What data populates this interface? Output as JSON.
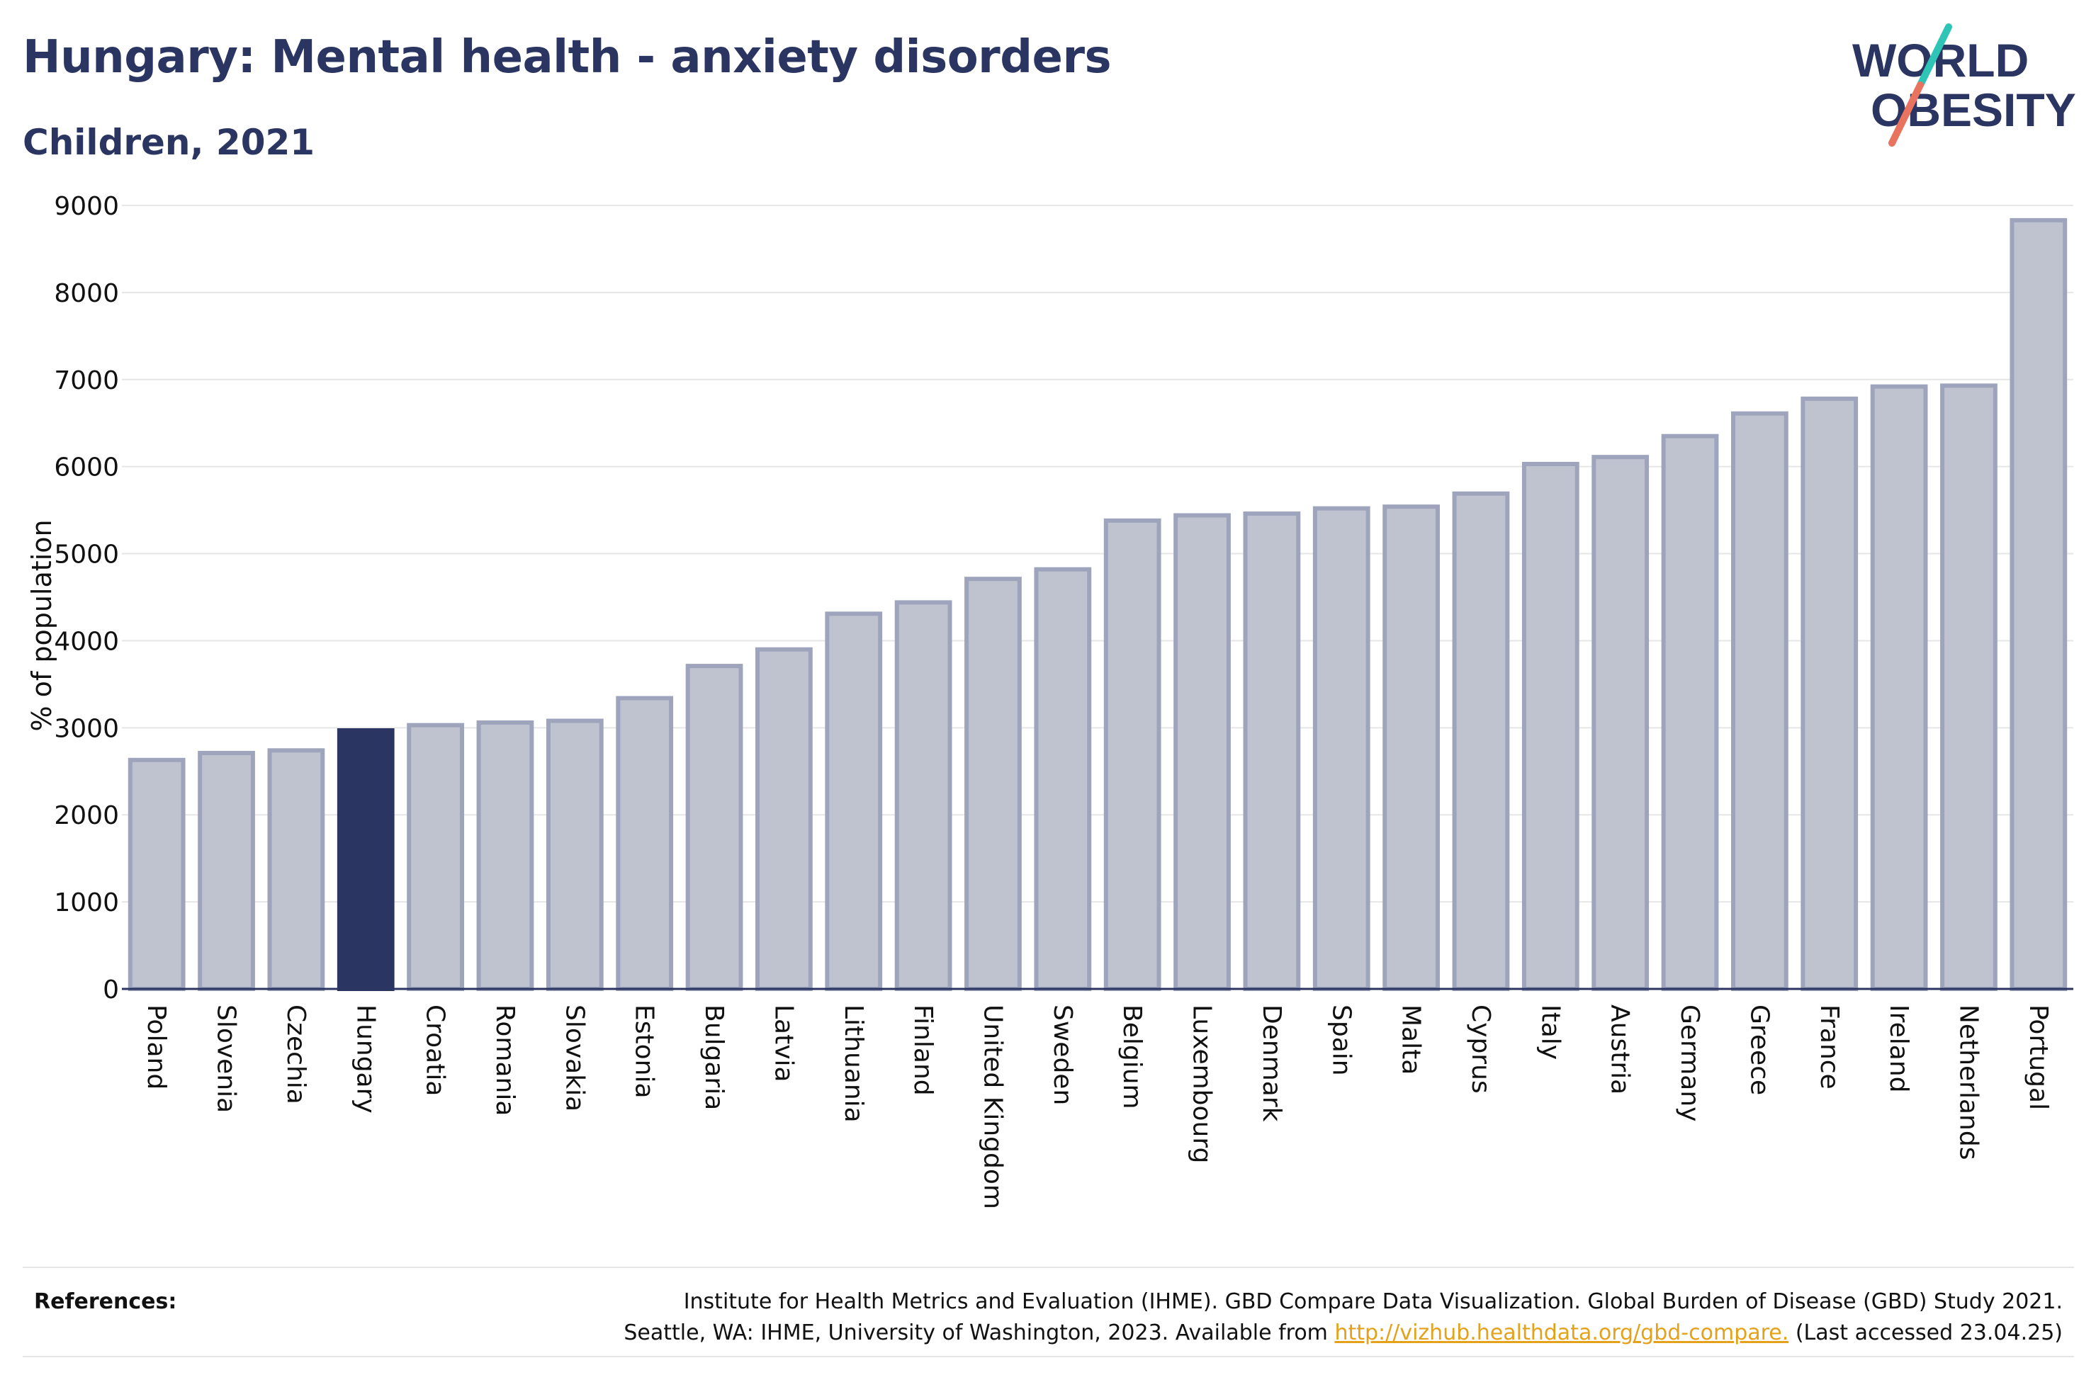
{
  "header": {
    "title": "Hungary: Mental health - anxiety disorders",
    "subtitle": "Children, 2021"
  },
  "logo": {
    "line1": "WORLD",
    "line2": "OBESITY"
  },
  "colors": {
    "highlight": "#2b3561",
    "bar": "#bfc3d0",
    "bar_stroke": "#9ea4bb",
    "navy": "#2b3561",
    "accent_teal": "#2ec4b6",
    "accent_coral": "#e8735f",
    "link": "#e3a21a"
  },
  "chart_data": {
    "type": "bar",
    "title": "Hungary: Mental health - anxiety disorders",
    "subtitle": "Children, 2021",
    "xlabel": "",
    "ylabel": "% of population",
    "ylim": [
      0,
      9000
    ],
    "yticks": [
      0,
      1000,
      2000,
      3000,
      4000,
      5000,
      6000,
      7000,
      8000,
      9000
    ],
    "grid": true,
    "highlight": "Hungary",
    "categories": [
      "Poland",
      "Slovenia",
      "Czechia",
      "Hungary",
      "Croatia",
      "Romania",
      "Slovakia",
      "Estonia",
      "Bulgaria",
      "Latvia",
      "Lithuania",
      "Finland",
      "United Kingdom",
      "Sweden",
      "Belgium",
      "Luxembourg",
      "Denmark",
      "Spain",
      "Malta",
      "Cyprus",
      "Italy",
      "Austria",
      "Germany",
      "Greece",
      "France",
      "Ireland",
      "Netherlands",
      "Portugal"
    ],
    "values": [
      2630,
      2710,
      2740,
      2970,
      3030,
      3060,
      3080,
      3340,
      3710,
      3900,
      4310,
      4440,
      4710,
      4820,
      5380,
      5440,
      5460,
      5520,
      5540,
      5690,
      6030,
      6110,
      6350,
      6610,
      6780,
      6920,
      6930,
      8830
    ]
  },
  "references": {
    "label": "References:",
    "line1": "Institute for Health Metrics and Evaluation (IHME). GBD Compare Data Visualization. Global Burden of Disease (GBD) Study 2021.",
    "line2_prefix": "Seattle, WA: IHME, University of Washington, 2023. Available from ",
    "link": "http://vizhub.healthdata.org/gbd-compare.",
    "line2_suffix": " (Last accessed 23.04.25)"
  }
}
